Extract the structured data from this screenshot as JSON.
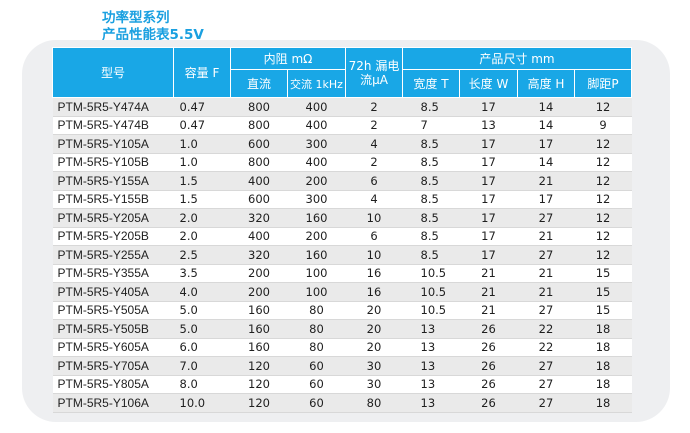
{
  "title": {
    "line1": "功率型系列",
    "line2": "产品性能表5.5V"
  },
  "table": {
    "headers": {
      "model": "型号",
      "capacity": "容量 F",
      "resistance_group": "内阻 mΩ",
      "dc": "直流",
      "ac": "交流 1kHz",
      "leakage_line1": "72h 漏电",
      "leakage_line2": "流μA",
      "size_group": "产品尺寸 mm",
      "width_t": "宽度 T",
      "length_w": "长度 W",
      "height_h": "高度 H",
      "pitch_p": "脚距P"
    },
    "rows": [
      {
        "model": "PTM-5R5-Y474A",
        "cap": "0.47",
        "dc": "800",
        "ac": "400",
        "leak": "2",
        "t": "8.5",
        "w": "17",
        "h": "14",
        "p": "12"
      },
      {
        "model": "PTM-5R5-Y474B",
        "cap": "0.47",
        "dc": "800",
        "ac": "400",
        "leak": "2",
        "t": "7",
        "w": "13",
        "h": "14",
        "p": "9"
      },
      {
        "model": "PTM-5R5-Y105A",
        "cap": "1.0",
        "dc": "600",
        "ac": "300",
        "leak": "4",
        "t": "8.5",
        "w": "17",
        "h": "17",
        "p": "12"
      },
      {
        "model": "PTM-5R5-Y105B",
        "cap": "1.0",
        "dc": "800",
        "ac": "400",
        "leak": "2",
        "t": "8.5",
        "w": "17",
        "h": "14",
        "p": "12"
      },
      {
        "model": "PTM-5R5-Y155A",
        "cap": "1.5",
        "dc": "400",
        "ac": "200",
        "leak": "6",
        "t": "8.5",
        "w": "17",
        "h": "21",
        "p": "12"
      },
      {
        "model": "PTM-5R5-Y155B",
        "cap": "1.5",
        "dc": "600",
        "ac": "300",
        "leak": "4",
        "t": "8.5",
        "w": "17",
        "h": "17",
        "p": "12"
      },
      {
        "model": "PTM-5R5-Y205A",
        "cap": "2.0",
        "dc": "320",
        "ac": "160",
        "leak": "10",
        "t": "8.5",
        "w": "17",
        "h": "27",
        "p": "12"
      },
      {
        "model": "PTM-5R5-Y205B",
        "cap": "2.0",
        "dc": "400",
        "ac": "200",
        "leak": "6",
        "t": "8.5",
        "w": "17",
        "h": "21",
        "p": "12"
      },
      {
        "model": "PTM-5R5-Y255A",
        "cap": "2.5",
        "dc": "320",
        "ac": "160",
        "leak": "10",
        "t": "8.5",
        "w": "17",
        "h": "27",
        "p": "12"
      },
      {
        "model": "PTM-5R5-Y355A",
        "cap": "3.5",
        "dc": "200",
        "ac": "100",
        "leak": "16",
        "t": "10.5",
        "w": "21",
        "h": "21",
        "p": "15"
      },
      {
        "model": "PTM-5R5-Y405A",
        "cap": "4.0",
        "dc": "200",
        "ac": "100",
        "leak": "16",
        "t": "10.5",
        "w": "21",
        "h": "21",
        "p": "15"
      },
      {
        "model": "PTM-5R5-Y505A",
        "cap": "5.0",
        "dc": "160",
        "ac": "80",
        "leak": "20",
        "t": "10.5",
        "w": "21",
        "h": "27",
        "p": "15"
      },
      {
        "model": "PTM-5R5-Y505B",
        "cap": "5.0",
        "dc": "160",
        "ac": "80",
        "leak": "20",
        "t": "13",
        "w": "26",
        "h": "22",
        "p": "18"
      },
      {
        "model": "PTM-5R5-Y605A",
        "cap": "6.0",
        "dc": "160",
        "ac": "80",
        "leak": "20",
        "t": "13",
        "w": "26",
        "h": "22",
        "p": "18"
      },
      {
        "model": "PTM-5R5-Y705A",
        "cap": "7.0",
        "dc": "120",
        "ac": "60",
        "leak": "30",
        "t": "13",
        "w": "26",
        "h": "27",
        "p": "18"
      },
      {
        "model": "PTM-5R5-Y805A",
        "cap": "8.0",
        "dc": "120",
        "ac": "60",
        "leak": "30",
        "t": "13",
        "w": "26",
        "h": "27",
        "p": "18"
      },
      {
        "model": "PTM-5R5-Y106A",
        "cap": "10.0",
        "dc": "120",
        "ac": "60",
        "leak": "80",
        "t": "13",
        "w": "26",
        "h": "27",
        "p": "18"
      }
    ]
  },
  "colors": {
    "accent": "#19a7e6",
    "title": "#1aa0e0",
    "panel_bg": "#eeeff1",
    "row_alt": "#eaeaea"
  }
}
